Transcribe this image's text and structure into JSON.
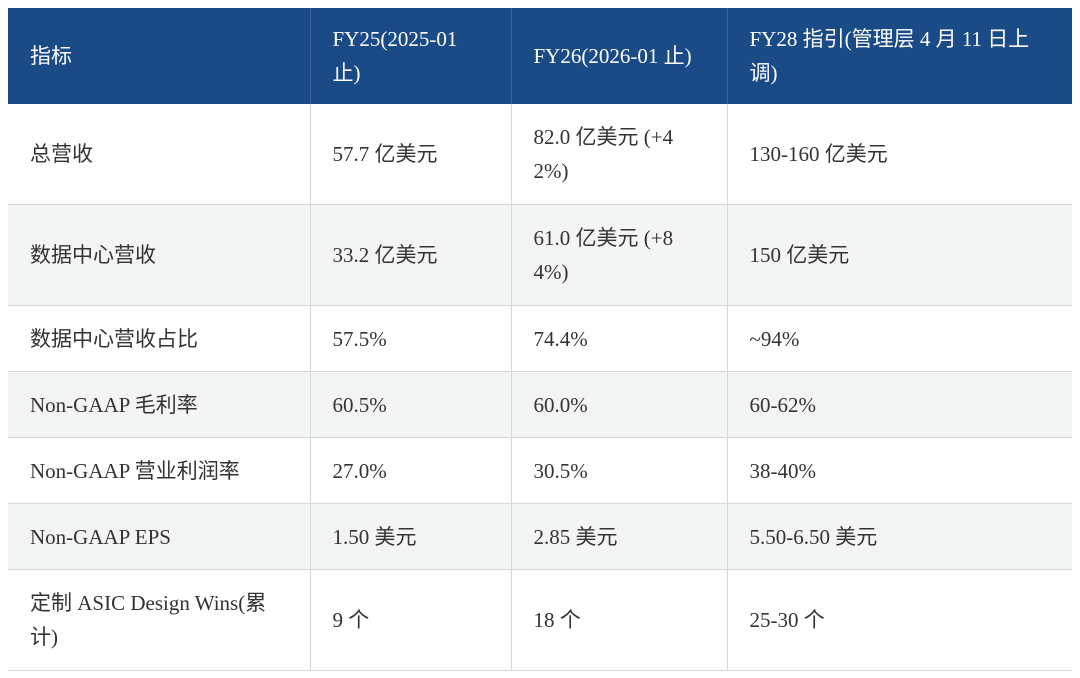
{
  "header": {
    "metric": "指标",
    "fy25": "FY25(2025-01 止)",
    "fy26": "FY26(2026-01 止)",
    "fy28": "FY28 指引(管理层 4 月 11 日上调)"
  },
  "rows": [
    {
      "metric": "总营收",
      "fy25": "57.7 亿美元",
      "fy26": "82.0 亿美元 (+42%)",
      "fy28": "130-160 亿美元"
    },
    {
      "metric": "数据中心营收",
      "fy25": "33.2 亿美元",
      "fy26": "61.0 亿美元 (+84%)",
      "fy28": "150 亿美元"
    },
    {
      "metric": "数据中心营收占比",
      "fy25": "57.5%",
      "fy26": "74.4%",
      "fy28": "~94%"
    },
    {
      "metric": "Non-GAAP 毛利率",
      "fy25": "60.5%",
      "fy26": "60.0%",
      "fy28": "60-62%"
    },
    {
      "metric": "Non-GAAP 营业利润率",
      "fy25": "27.0%",
      "fy26": "30.5%",
      "fy28": "38-40%"
    },
    {
      "metric": "Non-GAAP EPS",
      "fy25": "1.50 美元",
      "fy26": "2.85 美元",
      "fy28": "5.50-6.50 美元"
    },
    {
      "metric": "定制 ASIC Design Wins(累计)",
      "fy25": "9 个",
      "fy26": "18 个",
      "fy28": "25-30 个"
    }
  ],
  "colors": {
    "header_bg": "#1b4b87",
    "header_text": "#ffffff",
    "stripe_bg": "#f3f4f4",
    "border": "#d4d8dc",
    "text": "#333333"
  }
}
